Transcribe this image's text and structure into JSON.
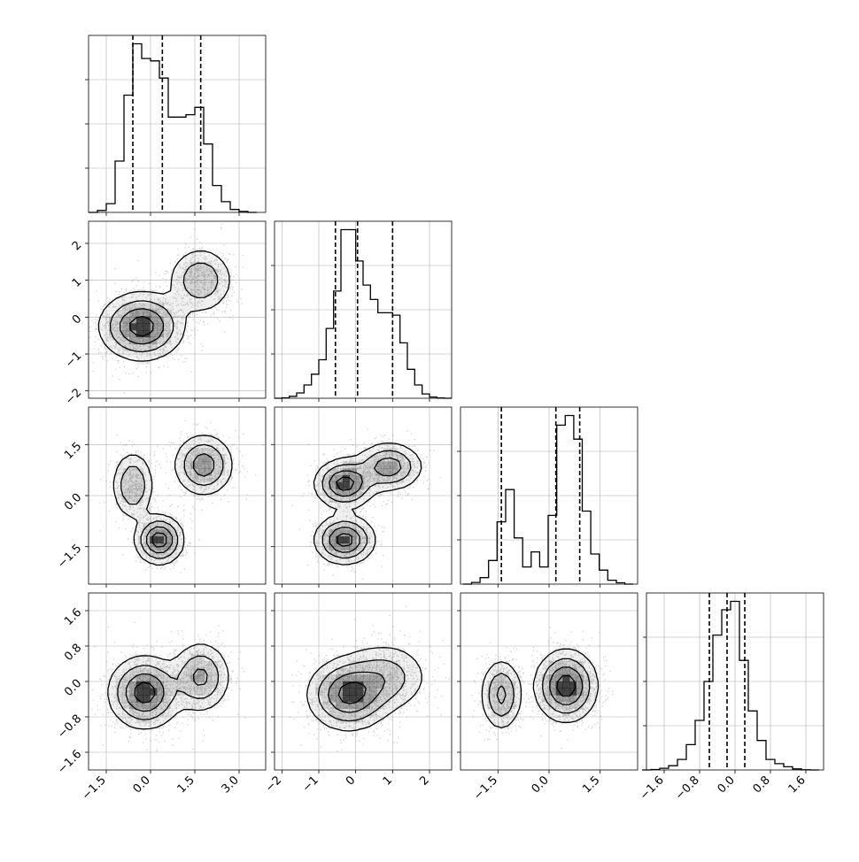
{
  "chart_data": {
    "type": "corner",
    "title": "",
    "variables": [
      {
        "range": [
          -2.1,
          3.9
        ],
        "ticks": [
          -1.5,
          0.0,
          1.5,
          3.0
        ],
        "tick_labels": [
          "−1.5",
          "0.0",
          "1.5",
          "3.0"
        ],
        "quantiles": [
          -0.6,
          0.4,
          1.7
        ]
      },
      {
        "range": [
          -2.2,
          2.6
        ],
        "ticks": [
          -2,
          -1,
          0,
          1,
          2
        ],
        "tick_labels": [
          "−2",
          "−1",
          "0",
          "1",
          "2"
        ],
        "quantiles": [
          -0.55,
          0.05,
          1.0
        ]
      },
      {
        "range": [
          -2.6,
          2.6
        ],
        "ticks": [
          -1.5,
          0.0,
          1.5
        ],
        "tick_labels": [
          "−1.5",
          "0.0",
          "1.5"
        ],
        "quantiles": [
          -1.4,
          0.2,
          0.9
        ]
      },
      {
        "range": [
          -2.0,
          2.0
        ],
        "ticks": [
          -1.6,
          -0.8,
          0.0,
          0.8,
          1.6
        ],
        "tick_labels": [
          "−1.6",
          "−0.8",
          "0.0",
          "0.8",
          "1.6"
        ],
        "quantiles": [
          -0.58,
          -0.18,
          0.22
        ]
      }
    ],
    "histograms": [
      {
        "variable": 0,
        "bin_centers": [
          -1.95,
          -1.65,
          -1.35,
          -1.05,
          -0.75,
          -0.45,
          -0.15,
          0.15,
          0.45,
          0.75,
          1.05,
          1.35,
          1.65,
          1.95,
          2.25,
          2.55,
          2.85,
          3.15,
          3.45
        ],
        "counts": [
          0,
          4,
          18,
          105,
          240,
          345,
          315,
          310,
          275,
          195,
          195,
          200,
          215,
          140,
          55,
          22,
          6,
          2,
          0
        ]
      },
      {
        "variable": 1,
        "bin_centers": [
          -2.1,
          -1.9,
          -1.7,
          -1.5,
          -1.3,
          -1.1,
          -0.9,
          -0.7,
          -0.5,
          -0.3,
          -0.1,
          0.1,
          0.3,
          0.5,
          0.7,
          0.9,
          1.1,
          1.3,
          1.5,
          1.7,
          1.9,
          2.1,
          2.3,
          2.5
        ],
        "counts": [
          0,
          2,
          8,
          22,
          55,
          100,
          160,
          290,
          445,
          700,
          700,
          570,
          470,
          410,
          355,
          355,
          345,
          230,
          120,
          55,
          18,
          5,
          1,
          0
        ]
      },
      {
        "variable": 2,
        "bin_centers": [
          -2.4,
          -2.15,
          -1.9,
          -1.65,
          -1.4,
          -1.15,
          -0.9,
          -0.65,
          -0.4,
          -0.15,
          0.1,
          0.35,
          0.6,
          0.85,
          1.1,
          1.35,
          1.6,
          1.85,
          2.1,
          2.35
        ],
        "counts": [
          0,
          8,
          30,
          110,
          290,
          440,
          215,
          80,
          150,
          80,
          320,
          740,
          785,
          675,
          340,
          140,
          65,
          18,
          6,
          0
        ]
      },
      {
        "variable": 3,
        "bin_centers": [
          -2.0,
          -1.8,
          -1.6,
          -1.4,
          -1.2,
          -1.0,
          -0.8,
          -0.6,
          -0.4,
          -0.2,
          0.0,
          0.2,
          0.4,
          0.6,
          0.8,
          1.0,
          1.2,
          1.4,
          1.6,
          1.8
        ],
        "counts": [
          0,
          2,
          8,
          20,
          50,
          120,
          235,
          420,
          640,
          760,
          800,
          520,
          280,
          140,
          50,
          30,
          15,
          5,
          1,
          0
        ]
      }
    ],
    "pairs": [
      {
        "x": 0,
        "y": 1,
        "modes": [
          {
            "mx": -0.3,
            "my": -0.25,
            "sx": 0.7,
            "sy": 0.45,
            "w": 0.7
          },
          {
            "mx": 1.7,
            "my": 1.0,
            "sx": 0.55,
            "sy": 0.45,
            "w": 0.3
          }
        ]
      },
      {
        "x": 0,
        "y": 2,
        "modes": [
          {
            "mx": -0.6,
            "my": 0.3,
            "sx": 0.35,
            "sy": 0.5,
            "w": 0.25
          },
          {
            "mx": 0.3,
            "my": -1.3,
            "sx": 0.4,
            "sy": 0.35,
            "w": 0.35
          },
          {
            "mx": 1.8,
            "my": 0.9,
            "sx": 0.5,
            "sy": 0.45,
            "w": 0.4
          }
        ]
      },
      {
        "x": 1,
        "y": 2,
        "modes": [
          {
            "mx": -0.3,
            "my": -1.3,
            "sx": 0.4,
            "sy": 0.35,
            "w": 0.35
          },
          {
            "mx": -0.3,
            "my": 0.35,
            "sx": 0.4,
            "sy": 0.35,
            "w": 0.35
          },
          {
            "mx": 0.9,
            "my": 0.85,
            "sx": 0.45,
            "sy": 0.35,
            "w": 0.3
          }
        ]
      },
      {
        "x": 0,
        "y": 3,
        "modes": [
          {
            "mx": -0.2,
            "my": -0.25,
            "sx": 0.6,
            "sy": 0.4,
            "w": 0.65
          },
          {
            "mx": 1.7,
            "my": 0.1,
            "sx": 0.5,
            "sy": 0.4,
            "w": 0.35
          }
        ]
      },
      {
        "x": 1,
        "y": 3,
        "modes": [
          {
            "mx": -0.2,
            "my": -0.3,
            "sx": 0.55,
            "sy": 0.4,
            "w": 0.65
          },
          {
            "mx": 0.8,
            "my": 0.1,
            "sx": 0.6,
            "sy": 0.4,
            "w": 0.35
          }
        ]
      },
      {
        "x": 2,
        "y": 3,
        "modes": [
          {
            "mx": -1.4,
            "my": -0.3,
            "sx": 0.3,
            "sy": 0.4,
            "w": 0.3
          },
          {
            "mx": 0.5,
            "my": -0.1,
            "sx": 0.45,
            "sy": 0.4,
            "w": 0.7
          }
        ]
      }
    ],
    "grid": true,
    "contour_levels": 4,
    "colors": {
      "line": "#000000",
      "grid": "#b0b0b0",
      "density": "#000000",
      "points": "#8a8a8a"
    }
  }
}
